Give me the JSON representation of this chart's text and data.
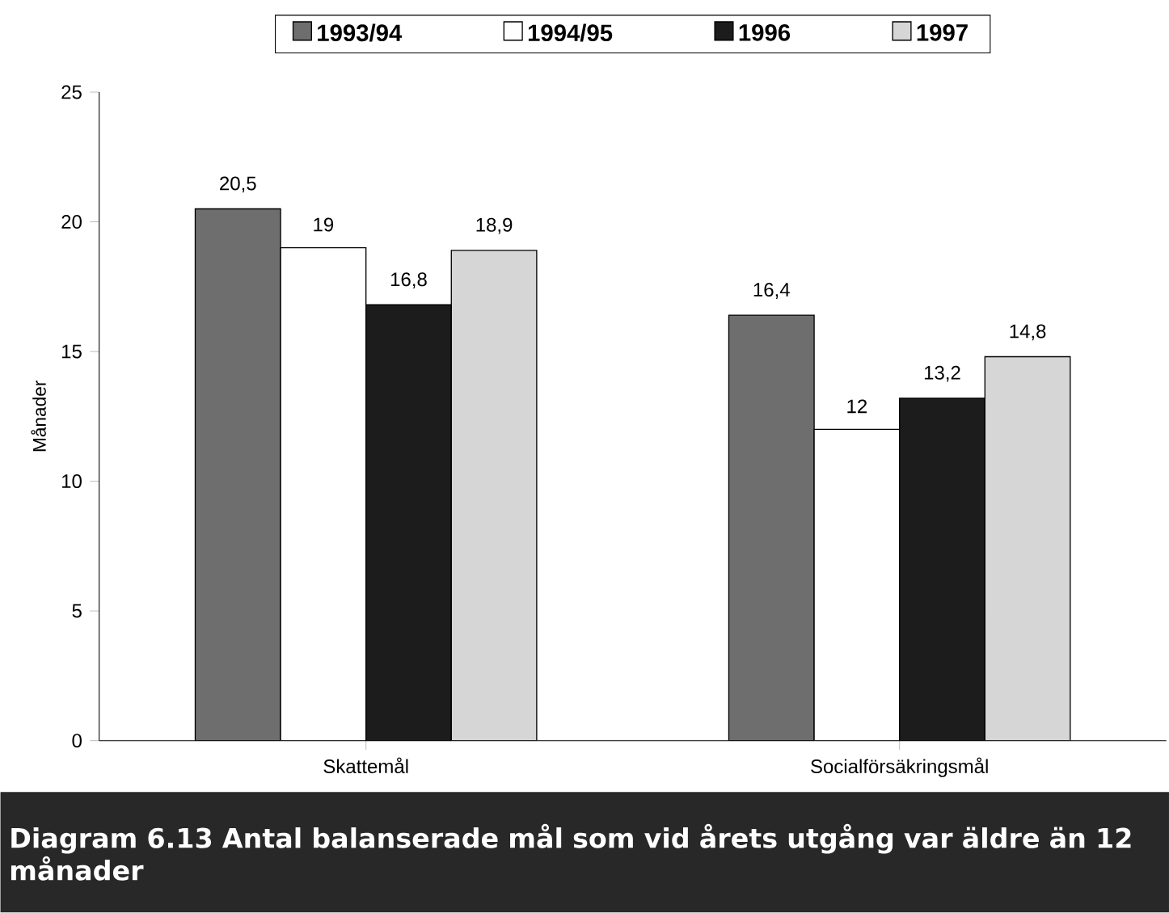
{
  "chart_data": {
    "type": "bar",
    "title": "Diagram 6.13 Antal balanserade mål som vid årets utgång var äldre än 12 månader",
    "categories": [
      "Skattemål",
      "Socialförsäkringsmål"
    ],
    "ylabel": "Månader",
    "series": [
      {
        "name": "1993/94",
        "color": "#6e6e6e",
        "values": [
          20.5,
          16.4
        ],
        "value_labels": [
          "20,5",
          "16,4"
        ]
      },
      {
        "name": "1994/95",
        "color": "#ffffff",
        "values": [
          19,
          12
        ],
        "value_labels": [
          "19",
          "12"
        ]
      },
      {
        "name": "1996",
        "color": "#1c1c1c",
        "values": [
          16.8,
          13.2
        ],
        "value_labels": [
          "16,8",
          "13,2"
        ]
      },
      {
        "name": "1997",
        "color": "#d6d6d6",
        "values": [
          18.9,
          14.8
        ],
        "value_labels": [
          "18,9",
          "14,8"
        ]
      }
    ],
    "ylim": [
      0,
      25
    ],
    "yticks": [
      0,
      5,
      10,
      15,
      20,
      25
    ],
    "grid": false,
    "legend": "top"
  }
}
